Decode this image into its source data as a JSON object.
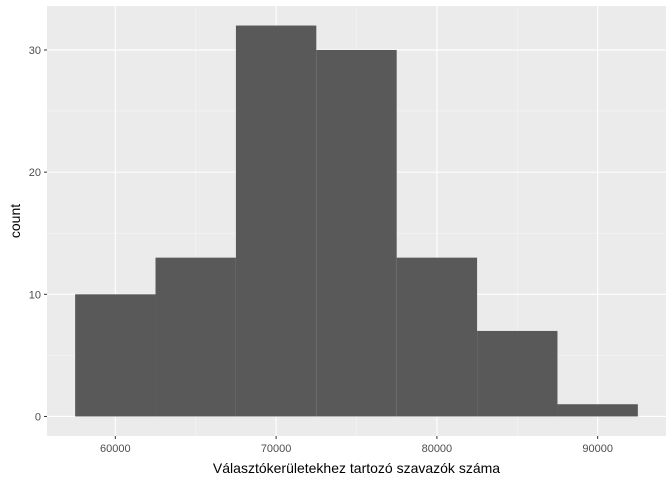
{
  "chart_data": {
    "type": "bar",
    "title": "",
    "xlabel": "Választókerületekhez tartozó szavazók száma",
    "ylabel": "count",
    "bins": [
      {
        "x0": 57500,
        "x1": 62500,
        "count": 10
      },
      {
        "x0": 62500,
        "x1": 67500,
        "count": 13
      },
      {
        "x0": 67500,
        "x1": 72500,
        "count": 32
      },
      {
        "x0": 72500,
        "x1": 77500,
        "count": 30
      },
      {
        "x0": 77500,
        "x1": 82500,
        "count": 13
      },
      {
        "x0": 82500,
        "x1": 87500,
        "count": 7
      },
      {
        "x0": 87500,
        "x1": 92500,
        "count": 1
      }
    ],
    "x_ticks": [
      60000,
      70000,
      80000,
      90000
    ],
    "x_tick_labels": [
      "60000",
      "70000",
      "80000",
      "90000"
    ],
    "y_ticks": [
      0,
      10,
      20,
      30
    ],
    "y_tick_labels": [
      "0",
      "10",
      "20",
      "30"
    ],
    "xlim": [
      55750,
      94250
    ],
    "ylim": [
      -1.6,
      33.6
    ],
    "grid": true,
    "colors": {
      "panel_background": "#ebebeb",
      "grid_major": "#ffffff",
      "grid_minor": "#f5f5f5",
      "bar_fill": "#595959",
      "tick_text": "#4d4d4d",
      "tick_mark": "#333333"
    }
  }
}
